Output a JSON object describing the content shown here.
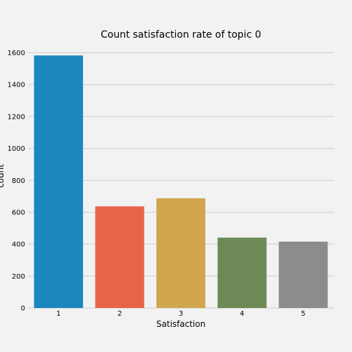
{
  "chart_data": {
    "type": "bar",
    "title": "Count satisfaction rate of topic 0",
    "xlabel": "Satisfaction",
    "ylabel": "count",
    "categories": [
      "1",
      "2",
      "3",
      "4",
      "5"
    ],
    "values": [
      1583,
      637,
      688,
      441,
      416
    ],
    "colors": [
      "#1a87bd",
      "#e5644a",
      "#d1a64e",
      "#6c8956",
      "#8c8c8c"
    ],
    "ylim": [
      0,
      1600
    ],
    "yticks": [
      0,
      200,
      400,
      600,
      800,
      1000,
      1200,
      1400,
      1600
    ],
    "grid": true,
    "background": "#f2f2f2"
  }
}
